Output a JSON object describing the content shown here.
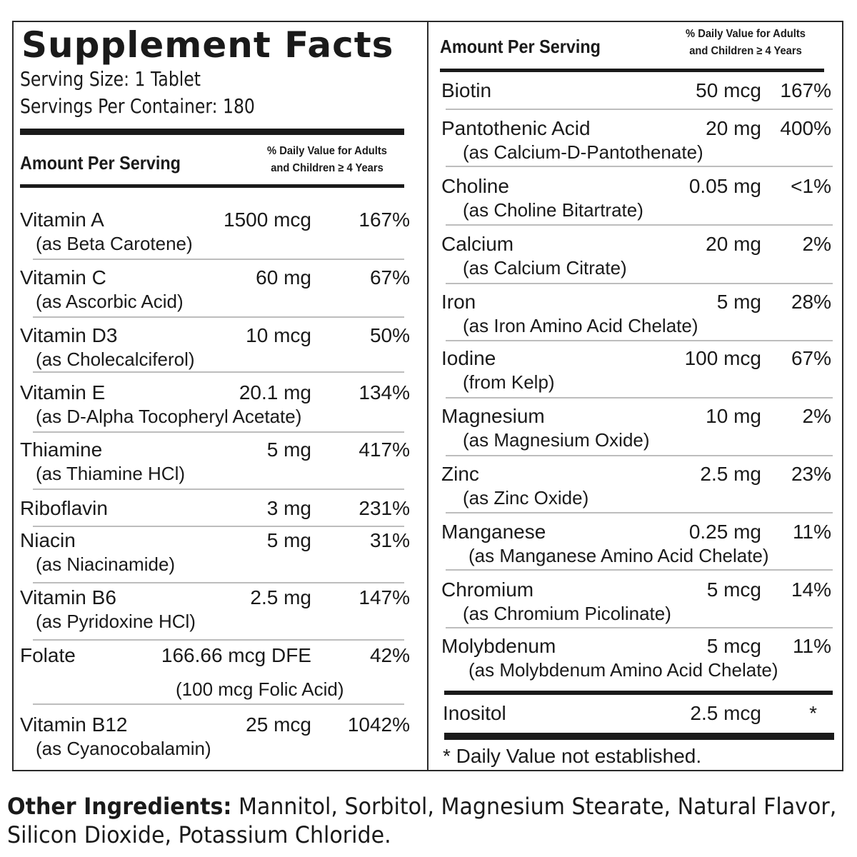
{
  "panel": {
    "title": "Supplement Facts",
    "serving_size": "Serving Size: 1 Tablet",
    "servings_per_container": "Servings Per Container: 180",
    "amount_per_serving": "Amount Per Serving",
    "dv_header_line1": "% Daily Value for Adults",
    "dv_header_line2": "and Children ≥ 4 Years"
  },
  "left_nutrients": [
    {
      "name": "Vitamin A",
      "sub": "(as Beta Carotene)",
      "amount": "1500 mcg",
      "dv": "167%"
    },
    {
      "name": "Vitamin C",
      "sub": "(as Ascorbic Acid)",
      "amount": "60 mg",
      "dv": "67%"
    },
    {
      "name": "Vitamin D3",
      "sub": "(as Cholecalciferol)",
      "amount": "10 mcg",
      "dv": "50%"
    },
    {
      "name": "Vitamin E",
      "sub": "(as D-Alpha Tocopheryl Acetate)",
      "amount": "20.1 mg",
      "dv": "134%"
    },
    {
      "name": "Thiamine",
      "sub": "(as Thiamine HCl)",
      "amount": "5 mg",
      "dv": "417%"
    },
    {
      "name": "Riboflavin",
      "sub": "",
      "amount": "3 mg",
      "dv": "231%"
    },
    {
      "name": "Niacin",
      "sub": "(as Niacinamide)",
      "amount": "5 mg",
      "dv": "31%"
    },
    {
      "name": "Vitamin B6",
      "sub": "(as Pyridoxine HCl)",
      "amount": "2.5 mg",
      "dv": "147%"
    },
    {
      "name": "Folate",
      "sub": "(100 mcg Folic Acid)",
      "amount": "166.66 mcg DFE",
      "dv": "42%"
    },
    {
      "name": "Vitamin B12",
      "sub": "(as Cyanocobalamin)",
      "amount": "25 mcg",
      "dv": "1042%"
    }
  ],
  "right_nutrients": [
    {
      "name": "Biotin",
      "sub": "",
      "amount": "50 mcg",
      "dv": "167%"
    },
    {
      "name": "Pantothenic Acid",
      "sub": "(as Calcium-D-Pantothenate)",
      "amount": "20 mg",
      "dv": "400%"
    },
    {
      "name": "Choline",
      "sub": "(as Choline Bitartrate)",
      "amount": "0.05 mg",
      "dv": "<1%"
    },
    {
      "name": "Calcium",
      "sub": "(as Calcium Citrate)",
      "amount": "20 mg",
      "dv": "2%"
    },
    {
      "name": "Iron",
      "sub": "(as Iron Amino Acid Chelate)",
      "amount": "5 mg",
      "dv": "28%"
    },
    {
      "name": "Iodine",
      "sub": "(from Kelp)",
      "amount": "100 mcg",
      "dv": "67%"
    },
    {
      "name": "Magnesium",
      "sub": "(as Magnesium Oxide)",
      "amount": "10 mg",
      "dv": "2%"
    },
    {
      "name": "Zinc",
      "sub": "(as Zinc Oxide)",
      "amount": "2.5 mg",
      "dv": "23%"
    },
    {
      "name": "Manganese",
      "sub": "(as Manganese Amino Acid Chelate)",
      "amount": "0.25 mg",
      "dv": "11%"
    },
    {
      "name": "Chromium",
      "sub": "(as Chromium Picolinate)",
      "amount": "5 mcg",
      "dv": "14%"
    },
    {
      "name": "Molybdenum",
      "sub": "(as Molybdenum Amino Acid Chelate)",
      "amount": "5 mcg",
      "dv": "11%"
    }
  ],
  "other_nutrient": {
    "name": "Inositol",
    "amount": "2.5 mcg",
    "dv": "*"
  },
  "footnote": "* Daily Value not established.",
  "other_ingredients": {
    "label": "Other Ingredients:",
    "line1": "Mannitol, Sorbitol, Magnesium Stearate, Natural Flavor,",
    "line2": "Silicon Dioxide, Potassium Chloride."
  }
}
